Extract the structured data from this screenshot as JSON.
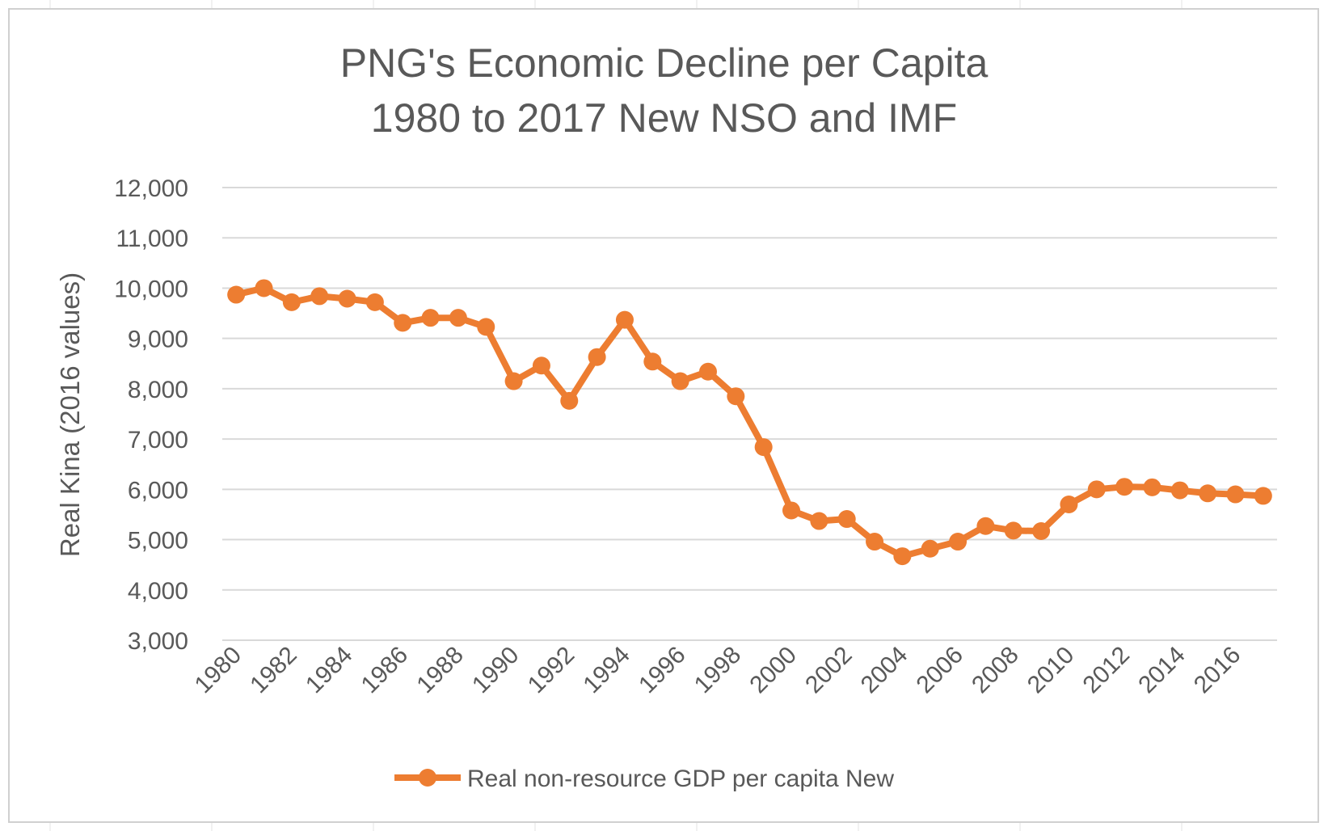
{
  "chart_data": {
    "type": "line",
    "title": "PNG's Economic Decline  per Capita",
    "subtitle": "1980 to 2017 New NSO and IMF",
    "ylabel": "Real Kina (2016 values)",
    "xlabel": "",
    "ylim": [
      3000,
      12000
    ],
    "y_ticks": [
      "3,000",
      "4,000",
      "5,000",
      "6,000",
      "7,000",
      "8,000",
      "9,000",
      "10,000",
      "11,000",
      "12,000"
    ],
    "x_tick_labels": [
      "1980",
      "1982",
      "1984",
      "1986",
      "1988",
      "1990",
      "1992",
      "1994",
      "1996",
      "1998",
      "2000",
      "2002",
      "2004",
      "2006",
      "2008",
      "2010",
      "2012",
      "2014",
      "2016"
    ],
    "grid": true,
    "legend_position": "bottom",
    "series": [
      {
        "name": "Real non-resource GDP per capita New",
        "color": "#ED7D31",
        "x": [
          1980,
          1981,
          1982,
          1983,
          1984,
          1985,
          1986,
          1987,
          1988,
          1989,
          1990,
          1991,
          1992,
          1993,
          1994,
          1995,
          1996,
          1997,
          1998,
          1999,
          2000,
          2001,
          2002,
          2003,
          2004,
          2005,
          2006,
          2007,
          2008,
          2009,
          2010,
          2011,
          2012,
          2013,
          2014,
          2015,
          2016,
          2017
        ],
        "values": [
          9870,
          10000,
          9720,
          9840,
          9790,
          9720,
          9310,
          9410,
          9410,
          9230,
          8150,
          8460,
          7760,
          8630,
          9370,
          8540,
          8150,
          8340,
          7850,
          6840,
          5580,
          5370,
          5410,
          4960,
          4670,
          4820,
          4960,
          5270,
          5180,
          5170,
          5700,
          6000,
          6050,
          6040,
          5980,
          5920,
          5900,
          5870
        ]
      }
    ]
  }
}
